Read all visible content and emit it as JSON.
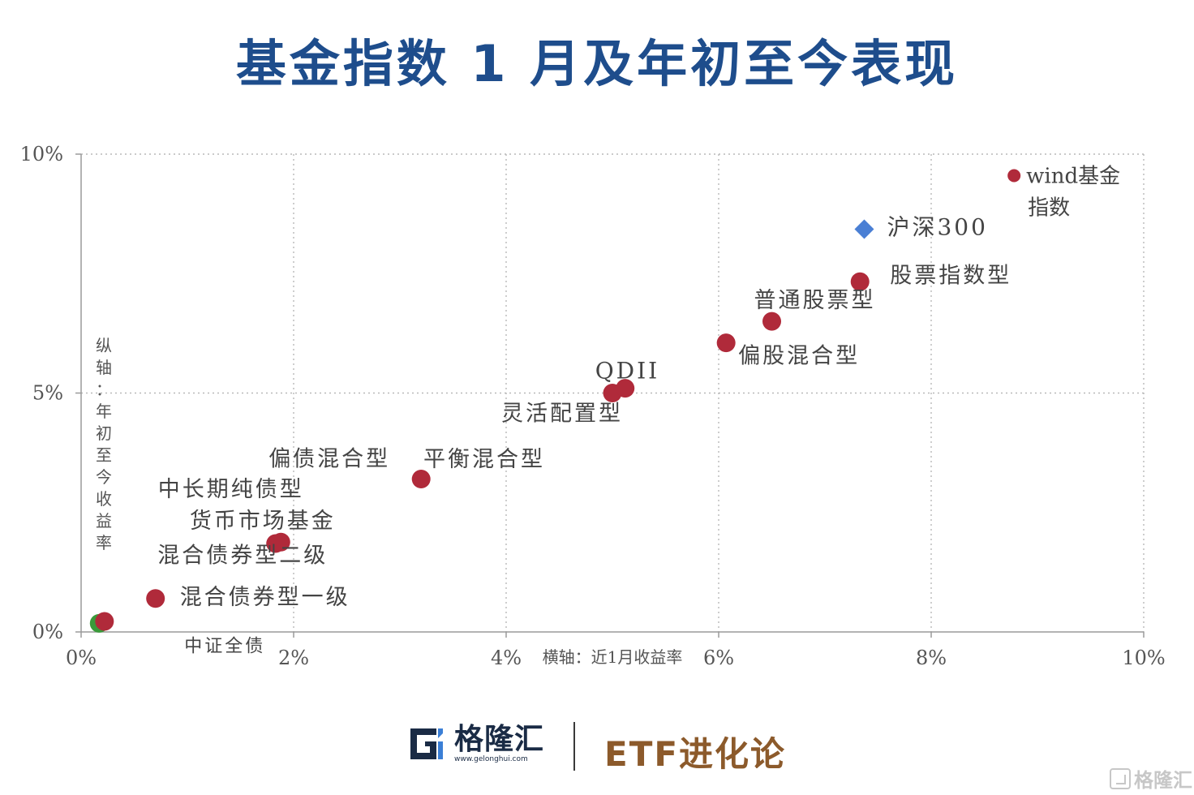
{
  "title": "基金指数 1 月及年初至今表现",
  "chart_data": {
    "type": "scatter",
    "xlim": [
      0,
      10
    ],
    "ylim": [
      0,
      10
    ],
    "x_ticks": [
      "0%",
      "2%",
      "4%",
      "6%",
      "8%",
      "10%"
    ],
    "y_ticks": [
      "0%",
      "5%",
      "10%"
    ],
    "x_tick_values": [
      0,
      2,
      4,
      6,
      8,
      10
    ],
    "y_tick_values": [
      0,
      5,
      10
    ],
    "xlabel": "横轴：近1月收益率",
    "ylabel": "纵轴：年初至今收益率",
    "grid": true,
    "points": [
      {
        "label": "中证全债",
        "x": 0.17,
        "y": 0.18,
        "color": "#3a9a3a",
        "marker": "circle"
      },
      {
        "label": "货币市场基金",
        "x": 0.22,
        "y": 0.22,
        "color": "#b02a3a",
        "marker": "circle"
      },
      {
        "label": "混合债券型一级",
        "x": 0.7,
        "y": 0.7,
        "color": "#b02a3a",
        "marker": "circle"
      },
      {
        "label": "中长期纯债型",
        "x": 1.83,
        "y": 1.85,
        "color": "#b02a3a",
        "marker": "circle"
      },
      {
        "label": "混合债券型二级",
        "x": 1.88,
        "y": 1.88,
        "color": "#b02a3a",
        "marker": "circle"
      },
      {
        "label": "偏债混合型",
        "x": 3.2,
        "y": 3.2,
        "color": "#b02a3a",
        "marker": "circle"
      },
      {
        "label": "灵活配置型",
        "x": 5.0,
        "y": 5.0,
        "color": "#b02a3a",
        "marker": "circle"
      },
      {
        "label": "QDII",
        "x": 5.12,
        "y": 5.1,
        "color": "#b02a3a",
        "marker": "circle"
      },
      {
        "label": "偏股混合型",
        "x": 6.07,
        "y": 6.05,
        "color": "#b02a3a",
        "marker": "circle"
      },
      {
        "label": "普通股票型",
        "x": 6.5,
        "y": 6.5,
        "color": "#b02a3a",
        "marker": "circle"
      },
      {
        "label": "股票指数型",
        "x": 7.33,
        "y": 7.33,
        "color": "#b02a3a",
        "marker": "circle"
      },
      {
        "label": "沪深300",
        "x": 7.37,
        "y": 8.43,
        "color": "#4a7fd4",
        "marker": "diamond"
      },
      {
        "label": "wind基金指数",
        "x": 8.78,
        "y": 9.55,
        "color": "#b02a3a",
        "marker": "circle"
      }
    ],
    "annotations": [
      {
        "text": "中证全债",
        "anchor": "below-right"
      },
      {
        "text": "平衡混合型",
        "anchor": "above-right"
      }
    ]
  },
  "footer": {
    "logo_name": "格隆汇",
    "logo_url": "www.gelonghui.com",
    "brand": "ETF进化论",
    "watermark": "格隆汇"
  }
}
